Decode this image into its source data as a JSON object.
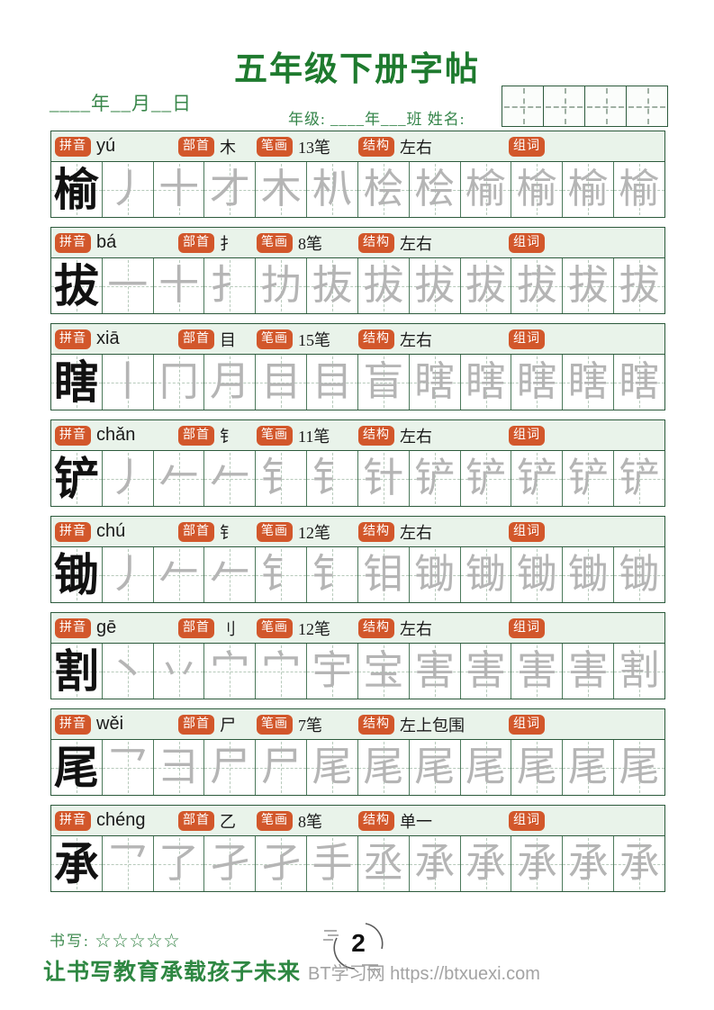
{
  "page": {
    "title": "五年级下册字帖",
    "date_line": "____年__月__日",
    "grade_line": "年级: ____年___班  姓名:",
    "name_grid_cells": 4
  },
  "labels": {
    "pinyin": "拼音",
    "radical": "部首",
    "strokes": "笔画",
    "structure": "结构",
    "words": "组词"
  },
  "colors": {
    "border_green": "#2c5a3c",
    "header_band": "#e9f3ea",
    "badge_orange": "#d2572b",
    "title_green": "#1e7a2e",
    "trace_gray": "#b5b5b5",
    "watermark_gray": "#a3a3a3"
  },
  "rows": [
    {
      "char": "榆",
      "pinyin": "yú",
      "radical": "木",
      "strokes": "13笔",
      "structure": "左右",
      "trace": [
        "丿",
        "十",
        "才",
        "木",
        "朳",
        "桧",
        "桧",
        "榆",
        "榆",
        "榆",
        "榆"
      ]
    },
    {
      "char": "拔",
      "pinyin": "bá",
      "radical": "扌",
      "strokes": "8笔",
      "structure": "左右",
      "trace": [
        "一",
        "十",
        "扌",
        "扐",
        "抜",
        "拔",
        "拔",
        "拔",
        "拔",
        "拔",
        "拔"
      ]
    },
    {
      "char": "瞎",
      "pinyin": "xiā",
      "radical": "目",
      "strokes": "15笔",
      "structure": "左右",
      "trace": [
        "丨",
        "冂",
        "月",
        "目",
        "目",
        "盲",
        "瞎",
        "瞎",
        "瞎",
        "瞎",
        "瞎"
      ]
    },
    {
      "char": "铲",
      "pinyin": "chǎn",
      "radical": "钅",
      "strokes": "11笔",
      "structure": "左右",
      "trace": [
        "丿",
        "𠂉",
        "𠂉",
        "钅",
        "钅",
        "针",
        "铲",
        "铲",
        "铲",
        "铲",
        "铲"
      ]
    },
    {
      "char": "锄",
      "pinyin": "chú",
      "radical": "钅",
      "strokes": "12笔",
      "structure": "左右",
      "trace": [
        "丿",
        "𠂉",
        "𠂉",
        "钅",
        "钅",
        "钼",
        "锄",
        "锄",
        "锄",
        "锄",
        "锄"
      ]
    },
    {
      "char": "割",
      "pinyin": "gē",
      "radical": "刂",
      "strokes": "12笔",
      "structure": "左右",
      "trace": [
        "丶",
        "丷",
        "宀",
        "宀",
        "宇",
        "宝",
        "害",
        "害",
        "害",
        "害",
        "割"
      ]
    },
    {
      "char": "尾",
      "pinyin": "wěi",
      "radical": "尸",
      "strokes": "7笔",
      "structure": "左上包围",
      "trace": [
        "乛",
        "彐",
        "尸",
        "尸",
        "尾",
        "尾",
        "尾",
        "尾",
        "尾",
        "尾",
        "尾"
      ]
    },
    {
      "char": "承",
      "pinyin": "chéng",
      "radical": "乙",
      "strokes": "8笔",
      "structure": "单一",
      "trace": [
        "乛",
        "了",
        "孑",
        "孑",
        "手",
        "丞",
        "承",
        "承",
        "承",
        "承",
        "承"
      ]
    }
  ],
  "footer": {
    "rating_label": "书写:",
    "stars": "☆☆☆☆☆",
    "page_number": "2",
    "slogan": "让书写教育承载孩子未来",
    "watermark": "BT学习网 https://btxuexi.com"
  }
}
